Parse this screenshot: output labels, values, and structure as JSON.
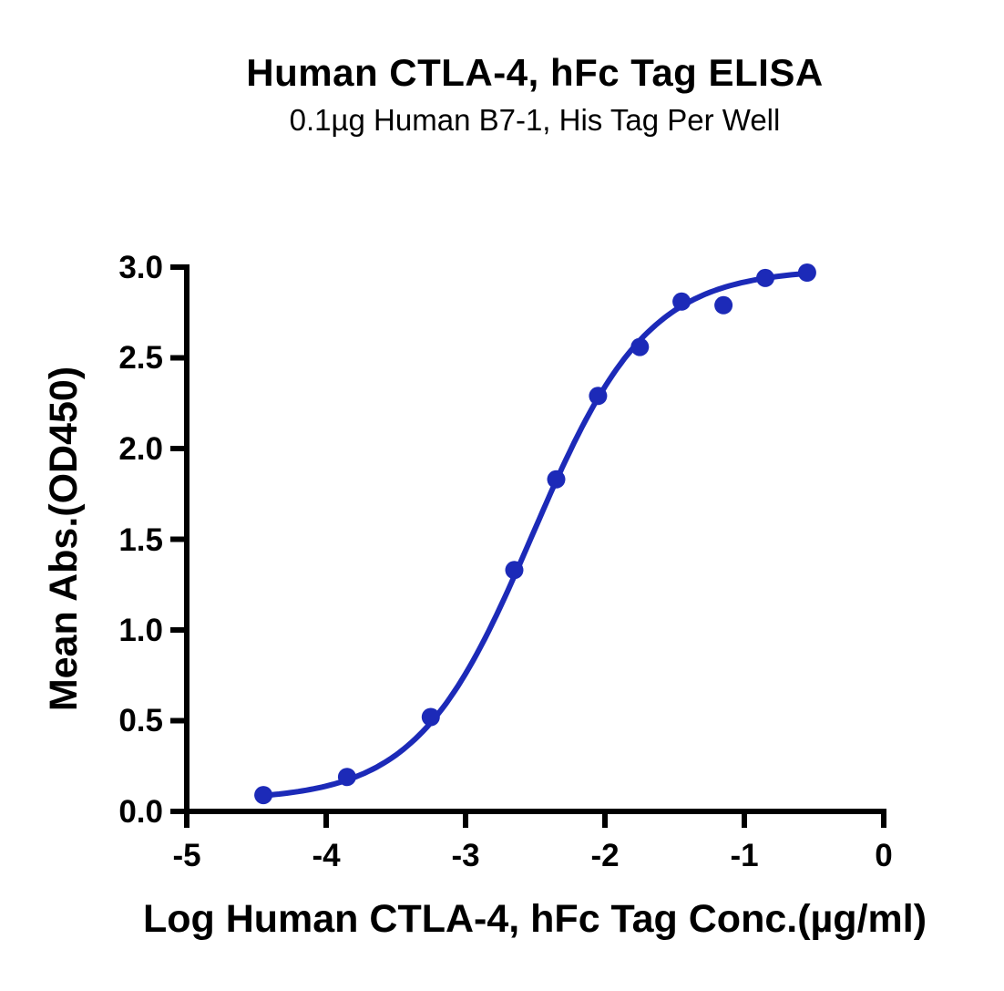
{
  "page": {
    "background_color": "#ffffff"
  },
  "chart_data": {
    "type": "scatter",
    "title": "Human CTLA-4, hFc Tag ELISA",
    "subtitle": "0.1µg Human B7-1, His Tag Per Well",
    "xlabel": "Log Human CTLA-4, hFc Tag Conc.(µg/ml)",
    "ylabel": "Mean Abs.(OD450)",
    "xlim": [
      -5,
      0
    ],
    "ylim": [
      0,
      3
    ],
    "xticks": [
      -5,
      -4,
      -3,
      -2,
      -1,
      0
    ],
    "xtick_labels": [
      "-5",
      "-4",
      "-3",
      "-2",
      "-1",
      "0"
    ],
    "yticks": [
      0,
      0.5,
      1,
      1.5,
      2,
      2.5,
      3
    ],
    "ytick_labels": [
      "0.0",
      "0.5",
      "1.0",
      "1.5",
      "2.0",
      "2.5",
      "3.0"
    ],
    "grid": false,
    "legend": false,
    "axis_color": "#000000",
    "accent_color": "#1c2ab8",
    "series": [
      {
        "name": "Human CTLA-4, hFc Tag",
        "marker": "circle",
        "marker_color": "#1c2ab8",
        "line_color": "#1c2ab8",
        "points": [
          {
            "x": -4.45,
            "y": 0.09
          },
          {
            "x": -3.85,
            "y": 0.19
          },
          {
            "x": -3.25,
            "y": 0.52
          },
          {
            "x": -2.65,
            "y": 1.33
          },
          {
            "x": -2.35,
            "y": 1.83
          },
          {
            "x": -2.05,
            "y": 2.29
          },
          {
            "x": -1.75,
            "y": 2.56
          },
          {
            "x": -1.45,
            "y": 2.81
          },
          {
            "x": -1.15,
            "y": 2.79
          },
          {
            "x": -0.85,
            "y": 2.94
          },
          {
            "x": -0.55,
            "y": 2.97
          }
        ]
      }
    ],
    "fit": {
      "model": "4PL",
      "bottom": 0.06,
      "top": 2.99,
      "log_ec50": -2.52,
      "hill": 1.05,
      "x_start": -4.45,
      "x_end": -0.55
    }
  }
}
